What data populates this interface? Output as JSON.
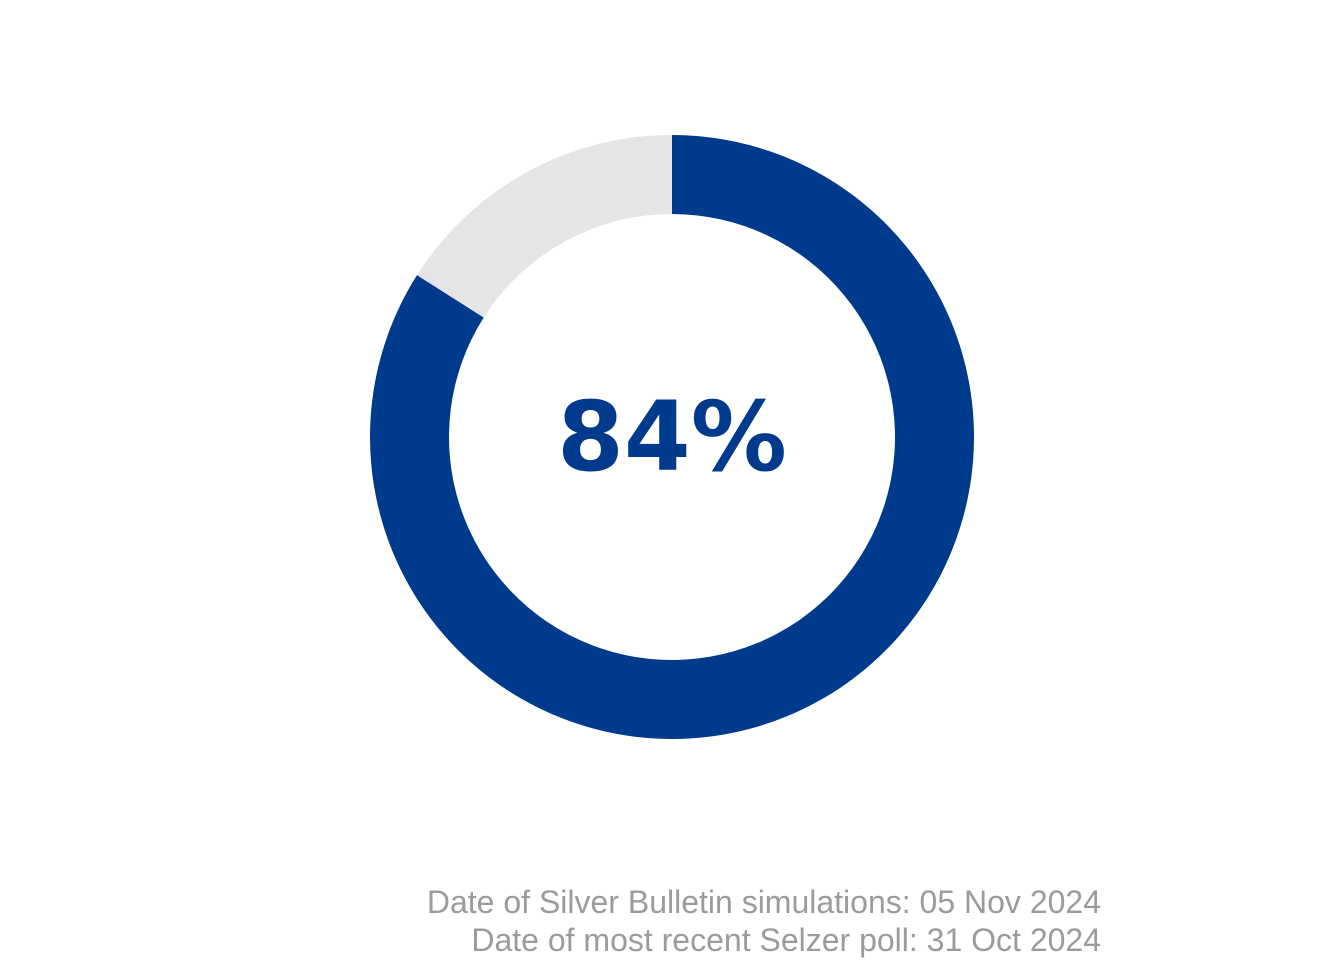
{
  "chart_data": {
    "type": "pie",
    "style": "donut",
    "slices": [
      {
        "value": 84,
        "color": "#003a8c"
      },
      {
        "value": 16,
        "color": "#e5e5e5"
      }
    ],
    "center_label": "84%",
    "center_label_color": "#003a8c"
  },
  "footnotes": {
    "simulation_date": "Date of Silver Bulletin simulations: 05 Nov 2024",
    "poll_date": "Date of most recent Selzer poll: 31 Oct 2024"
  }
}
